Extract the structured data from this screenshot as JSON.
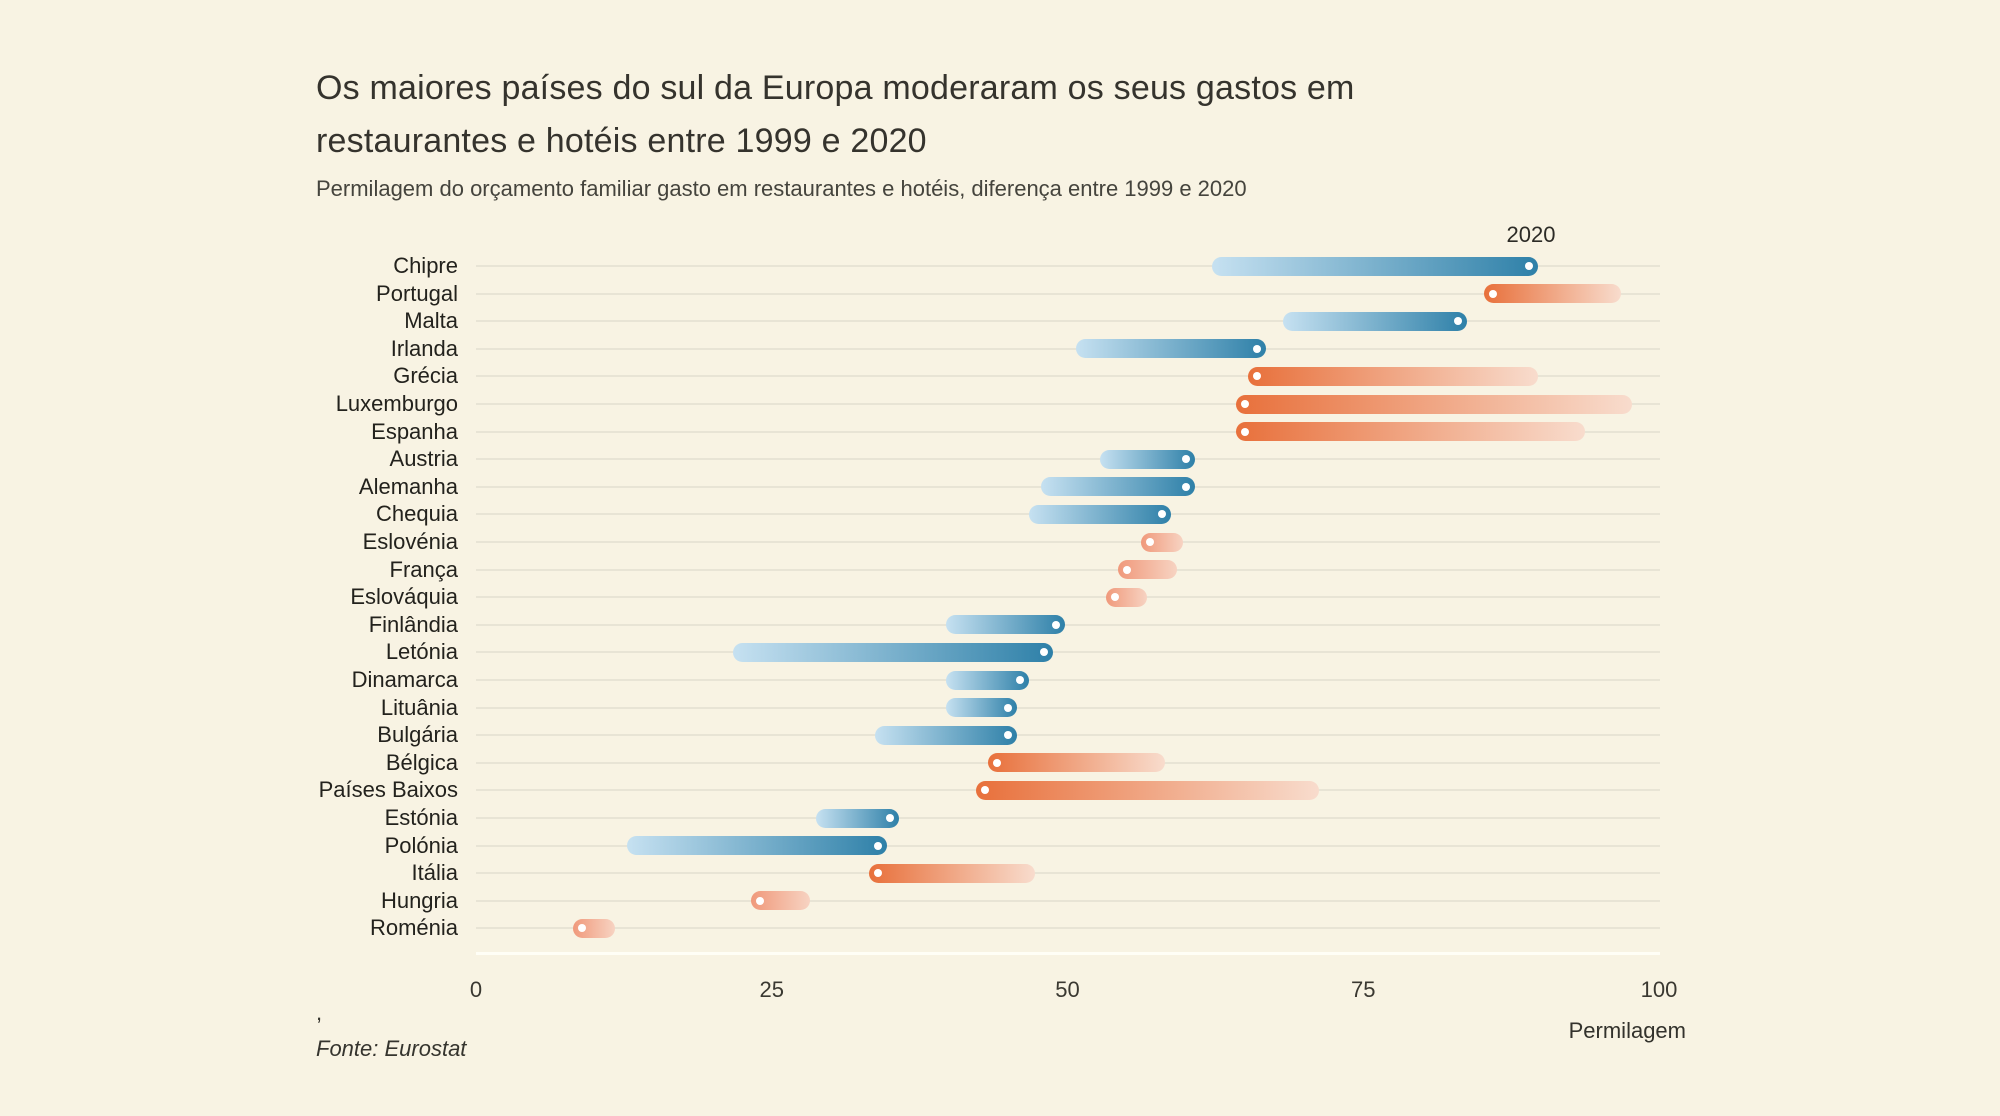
{
  "page": {
    "background_color": "#f8f3e3"
  },
  "header": {
    "title": "Os maiores países do sul da Europa moderaram os seus gastos em restaurantes e hotéis entre 1999 e 2020",
    "subtitle": "Permilagem do orçamento familiar gasto em restaurantes e hotéis, diferença entre 1999 e 2020"
  },
  "chart_data": {
    "type": "dumbbell",
    "style": "comet / arrow chart: gradient pill from 1999 value (faded tail) to 2020 value (saturated cap with white dot)",
    "title": "Os maiores países do sul da Europa moderaram os seus gastos em restaurantes e hotéis entre 1999 e 2020",
    "subtitle": "Permilagem do orçamento familiar gasto em restaurantes e hotéis, diferença entre 1999 e 2020",
    "xlabel": "Permilagem",
    "xlim": [
      0,
      100
    ],
    "x_ticks": [
      "0",
      "25",
      "50",
      "75",
      "100"
    ],
    "x_tick_values": [
      0,
      25,
      50,
      75,
      100
    ],
    "grid": "horizontal row guides on",
    "annotation": {
      "text": "2020",
      "at_value": 89,
      "row": "Chipre",
      "position": "above first row, over the 2020 dot"
    },
    "series_meaning": {
      "start": "1999",
      "end": "2020 (white dot)",
      "blue": "increase 1999→2020",
      "orange": "decrease 1999→2020"
    },
    "countries": [
      {
        "name": "Chipre",
        "v1999": 63,
        "v2020": 89
      },
      {
        "name": "Portugal",
        "v1999": 96,
        "v2020": 86
      },
      {
        "name": "Malta",
        "v1999": 69,
        "v2020": 83
      },
      {
        "name": "Irlanda",
        "v1999": 51.5,
        "v2020": 66
      },
      {
        "name": "Grécia",
        "v1999": 89,
        "v2020": 66
      },
      {
        "name": "Luxemburgo",
        "v1999": 97,
        "v2020": 65
      },
      {
        "name": "Espanha",
        "v1999": 93,
        "v2020": 65
      },
      {
        "name": "Austria",
        "v1999": 53.5,
        "v2020": 60
      },
      {
        "name": "Alemanha",
        "v1999": 48.5,
        "v2020": 60
      },
      {
        "name": "Chequia",
        "v1999": 47.5,
        "v2020": 58
      },
      {
        "name": "Eslovénia",
        "v1999": 59,
        "v2020": 57
      },
      {
        "name": "França",
        "v1999": 58.5,
        "v2020": 55
      },
      {
        "name": "Eslováquia",
        "v1999": 56,
        "v2020": 54
      },
      {
        "name": "Finlândia",
        "v1999": 40.5,
        "v2020": 49
      },
      {
        "name": "Letónia",
        "v1999": 22.5,
        "v2020": 48
      },
      {
        "name": "Dinamarca",
        "v1999": 40.5,
        "v2020": 46
      },
      {
        "name": "Lituânia",
        "v1999": 40.5,
        "v2020": 45
      },
      {
        "name": "Bulgária",
        "v1999": 34.5,
        "v2020": 45
      },
      {
        "name": "Bélgica",
        "v1999": 57.5,
        "v2020": 44
      },
      {
        "name": "Países Baixos",
        "v1999": 70.5,
        "v2020": 43
      },
      {
        "name": "Estónia",
        "v1999": 29.5,
        "v2020": 35
      },
      {
        "name": "Polónia",
        "v1999": 13.5,
        "v2020": 34
      },
      {
        "name": "Itália",
        "v1999": 46.5,
        "v2020": 34
      },
      {
        "name": "Hungria",
        "v1999": 27.5,
        "v2020": 24
      },
      {
        "name": "Roménia",
        "v1999": 11,
        "v2020": 9
      }
    ],
    "colors": {
      "increase_dark": "#2e80a8",
      "increase_light": "#c6e1f1",
      "decrease_dark": "#e8703b",
      "decrease_light": "#f8dccd",
      "decrease_soft_dark": "#f0997b",
      "decrease_soft_light": "#f7d3c2",
      "dot": "#ffffff",
      "gridline": "#e8e4d5",
      "axis_line": "#fffef6",
      "background": "#f8f3e3"
    }
  },
  "axis": {
    "x_label": "Permilagem"
  },
  "footer": {
    "comma": ",",
    "source": "Fonte: Eurostat"
  }
}
